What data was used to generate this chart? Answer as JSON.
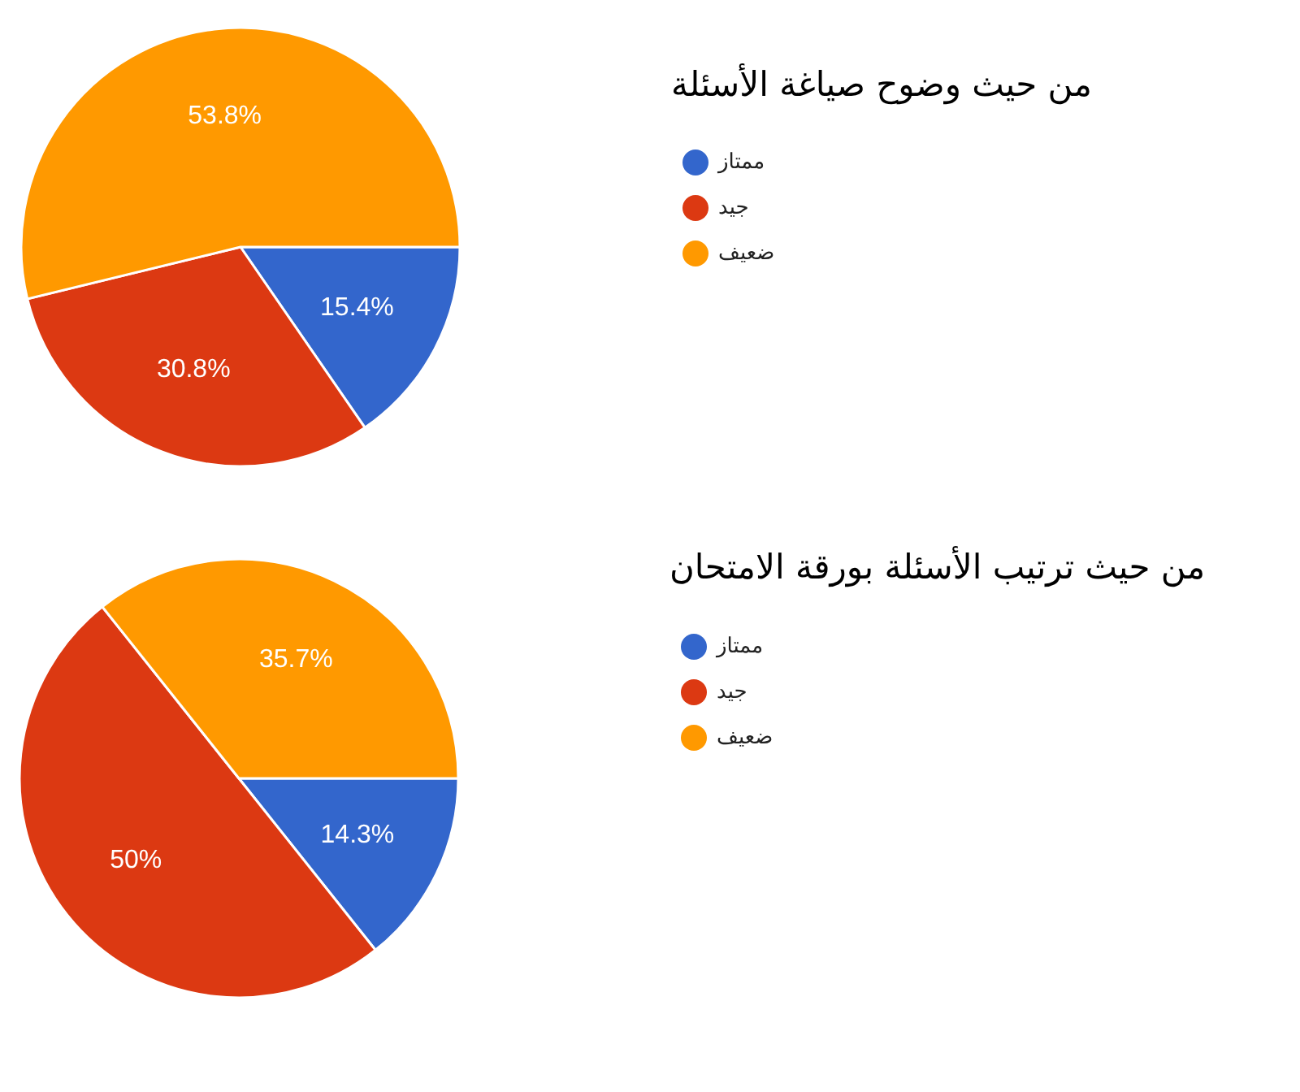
{
  "chart_data": [
    {
      "type": "pie",
      "title": "من حيث وضوح صياغة الأسئلة",
      "categories": [
        "ممتاز",
        "جيد",
        "ضعيف"
      ],
      "values": [
        15.4,
        30.8,
        53.8
      ],
      "colors": [
        "#3366cc",
        "#dc3912",
        "#ff9900"
      ],
      "value_labels": [
        "15.4%",
        "30.8%",
        "53.8%"
      ],
      "legend": "right"
    },
    {
      "type": "pie",
      "title": "من حيث ترتيب الأسئلة بورقة الامتحان",
      "categories": [
        "ممتاز",
        "جيد",
        "ضعيف"
      ],
      "values": [
        14.3,
        50,
        35.7
      ],
      "colors": [
        "#3366cc",
        "#dc3912",
        "#ff9900"
      ],
      "value_labels": [
        "14.3%",
        "50%",
        "35.7%"
      ],
      "legend": "right"
    }
  ]
}
